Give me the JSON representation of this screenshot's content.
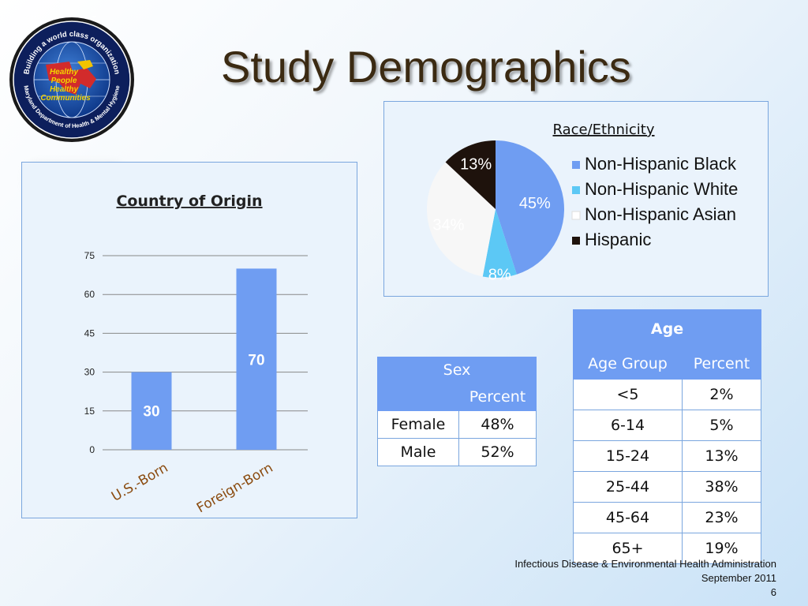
{
  "slide": {
    "title": "Study Demographics",
    "logo_text": {
      "top": "Building a world class organization",
      "bottom": "Maryland Department of Health & Mental Hygiene",
      "center": [
        "Healthy",
        "People",
        "Healthy",
        "Communities"
      ]
    }
  },
  "chart_data": [
    {
      "type": "bar",
      "title": "Country of Origin",
      "categories": [
        "U.S.-Born",
        "Foreign-Born"
      ],
      "values": [
        30,
        70
      ],
      "ylim": [
        0,
        75
      ],
      "yticks": [
        0,
        15,
        30,
        45,
        60,
        75
      ],
      "grid": true,
      "bar_color": "#6f9df2"
    },
    {
      "type": "pie",
      "title": "Race/Ethnicity",
      "labels": [
        "Non-Hispanic Black",
        "Non-Hispanic White",
        "Non-Hispanic Asian",
        "Hispanic"
      ],
      "values": [
        45,
        8,
        34,
        13
      ],
      "data_labels": [
        "45%",
        "8%",
        "34%",
        "13%"
      ],
      "colors": [
        "#6f9df2",
        "#5cc8f5",
        "#f7f7f7",
        "#1e120c"
      ],
      "legend_position": "right"
    }
  ],
  "sex_table": {
    "caption": "Sex",
    "col_header": "Percent",
    "rows": [
      {
        "label": "Female",
        "value": "48%"
      },
      {
        "label": "Male",
        "value": "52%"
      }
    ]
  },
  "age_table": {
    "caption": "Age",
    "col1": "Age Group",
    "col2": "Percent",
    "rows": [
      {
        "group": "<5",
        "pct": "2%"
      },
      {
        "group": "6-14",
        "pct": "5%"
      },
      {
        "group": "15-24",
        "pct": "13%"
      },
      {
        "group": "25-44",
        "pct": "38%"
      },
      {
        "group": "45-64",
        "pct": "23%"
      },
      {
        "group": "65+",
        "pct": "19%"
      }
    ]
  },
  "footer": {
    "org": "Infectious Disease & Environmental Health Administration",
    "date": "September 2011",
    "page": "6"
  }
}
